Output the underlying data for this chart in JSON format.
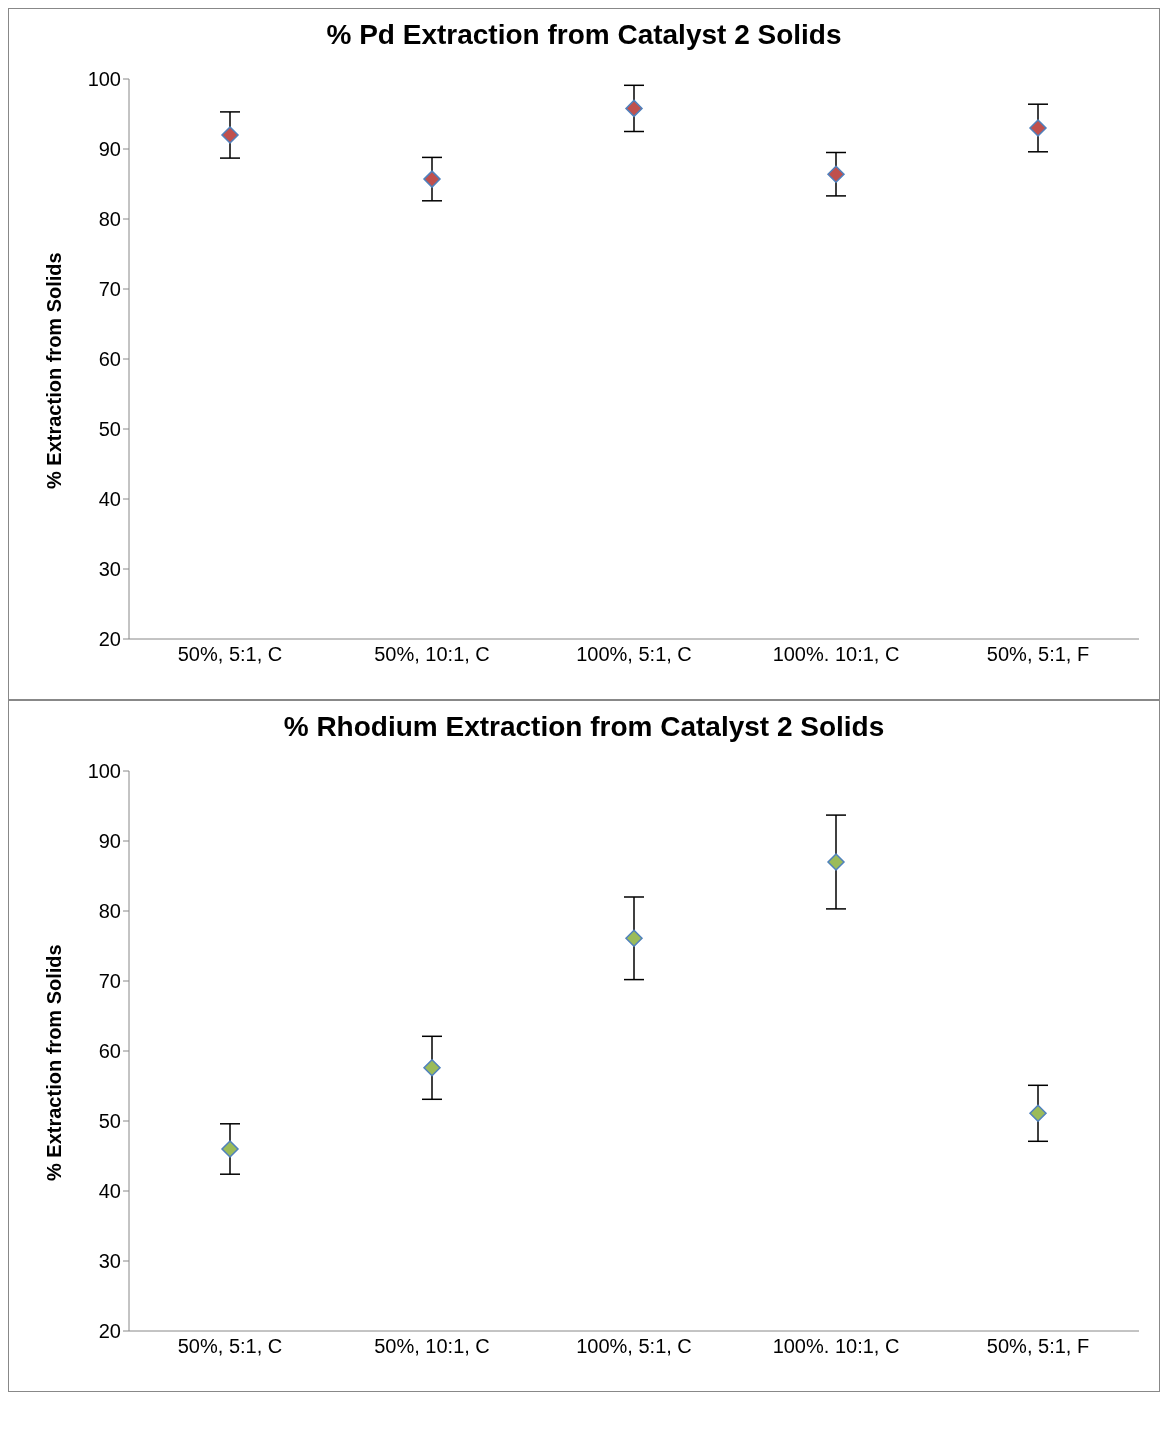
{
  "chart_data": [
    {
      "type": "scatter",
      "title": "% Pd Extraction from Catalyst 2 Solids",
      "ylabel": "% Extraction from Solids",
      "categories": [
        "50%, 5:1, C",
        "50%, 10:1, C",
        "100%, 5:1, C",
        "100%. 10:1, C",
        "50%, 5:1, F"
      ],
      "series": [
        {
          "color": "#c0504d",
          "values": [
            92.0,
            85.7,
            95.8,
            86.4,
            93.0
          ],
          "errors": [
            3.3,
            3.1,
            3.3,
            3.1,
            3.4
          ]
        }
      ],
      "ylim": [
        20,
        100
      ],
      "yticks": [
        20,
        30,
        40,
        50,
        60,
        70,
        80,
        90,
        100
      ],
      "grid": false,
      "legend": false,
      "marker": "diamond"
    },
    {
      "type": "scatter",
      "title": "% Rhodium Extraction from Catalyst 2 Solids",
      "ylabel": "% Extraction from Solids",
      "categories": [
        "50%, 5:1, C",
        "50%, 10:1, C",
        "100%, 5:1, C",
        "100%. 10:1, C",
        "50%, 5:1, F"
      ],
      "series": [
        {
          "color": "#9bbb59",
          "values": [
            46.0,
            57.6,
            76.1,
            87.0,
            51.1
          ],
          "errors": [
            3.6,
            4.5,
            5.9,
            6.7,
            4.0
          ]
        }
      ],
      "ylim": [
        20,
        100
      ],
      "yticks": [
        20,
        30,
        40,
        50,
        60,
        70,
        80,
        90,
        100
      ],
      "grid": false,
      "legend": false,
      "marker": "diamond"
    }
  ]
}
